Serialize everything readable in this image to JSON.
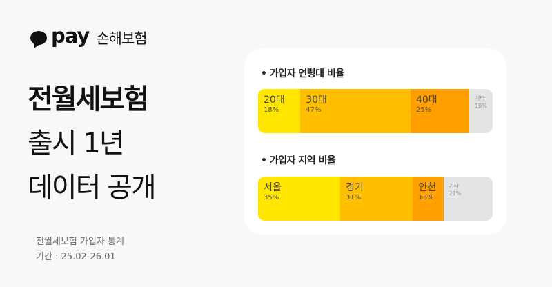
{
  "brand": {
    "logo": "pay",
    "product": "손해보험"
  },
  "headline": {
    "line1": "전월세보험",
    "line2": "출시 1년",
    "line3": "데이터 공개"
  },
  "meta": {
    "subject": "전월세보험 가입자 통계",
    "period": "기간 : 25.02-26.01"
  },
  "colors": {
    "yellow": "#FFE500",
    "amber": "#FFBE00",
    "orange": "#FF9F00",
    "grey": "#E4E4E4",
    "background": "#F7F8FA"
  },
  "chart_data": [
    {
      "type": "bar",
      "orientation": "stacked-horizontal",
      "title": "• 가입자 연령대 비율",
      "segments": [
        {
          "label": "20대",
          "value": 18,
          "pct": "18%",
          "color": "#FFE500"
        },
        {
          "label": "30대",
          "value": 47,
          "pct": "47%",
          "color": "#FFBE00"
        },
        {
          "label": "40대",
          "value": 25,
          "pct": "25%",
          "color": "#FF9F00"
        },
        {
          "label": "기타",
          "value": 10,
          "pct": "10%",
          "color": "#E4E4E4"
        }
      ]
    },
    {
      "type": "bar",
      "orientation": "stacked-horizontal",
      "title": "• 가입자 지역 비율",
      "segments": [
        {
          "label": "서울",
          "value": 35,
          "pct": "35%",
          "color": "#FFE500"
        },
        {
          "label": "경기",
          "value": 31,
          "pct": "31%",
          "color": "#FFBE00"
        },
        {
          "label": "인천",
          "value": 13,
          "pct": "13%",
          "color": "#FF9F00"
        },
        {
          "label": "기타",
          "value": 21,
          "pct": "21%",
          "color": "#E4E4E4"
        }
      ]
    }
  ]
}
